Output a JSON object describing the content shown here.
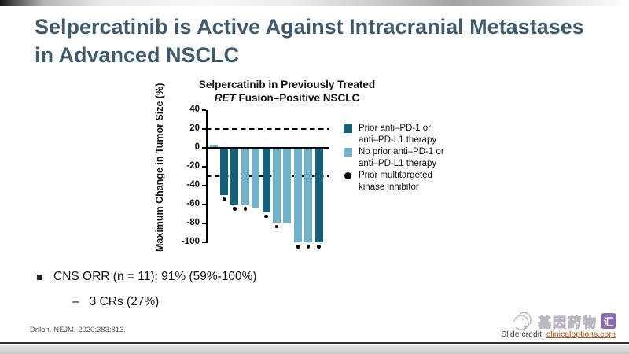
{
  "slide": {
    "title_line1": "Selpercatinib is Active Against Intracranial Metastases",
    "title_line2": "in Advanced NSCLC",
    "title_color": "#3e5a6b"
  },
  "chart": {
    "title_line1": "Selpercatinib in Previously Treated",
    "title_line2_italic": "RET",
    "title_line2_rest": " Fusion–Positive NSCLC",
    "ylabel": "Maximum Change in Tumor Size (%)"
  },
  "chart_data": {
    "type": "bar",
    "title": "Selpercatinib in Previously Treated RET Fusion–Positive NSCLC",
    "ylabel": "Maximum Change in Tumor Size (%)",
    "ylim": [
      -100,
      40
    ],
    "yticks": [
      40,
      20,
      0,
      -20,
      -40,
      -60,
      -80,
      -100
    ],
    "reference_lines_dashed": [
      20,
      -30
    ],
    "grid": false,
    "legend_position": "right",
    "series": [
      {
        "key": "prior",
        "name": "Prior anti–PD-1 or anti–PD-L1 therapy",
        "color": "#15607a"
      },
      {
        "key": "no_prior",
        "name": "No prior anti–PD-1 or anti–PD-L1 therapy",
        "color": "#72b2c8"
      }
    ],
    "marker_legend": "Prior multitargeted kinase inhibitor",
    "marker_color": "#000000",
    "points": [
      {
        "value": 3,
        "series": "no_prior",
        "prior_tki": false
      },
      {
        "value": -50,
        "series": "prior",
        "prior_tki": true
      },
      {
        "value": -60,
        "series": "prior",
        "prior_tki": true
      },
      {
        "value": -60,
        "series": "no_prior",
        "prior_tki": true
      },
      {
        "value": -63,
        "series": "no_prior",
        "prior_tki": false
      },
      {
        "value": -68,
        "series": "prior",
        "prior_tki": true
      },
      {
        "value": -79,
        "series": "no_prior",
        "prior_tki": true
      },
      {
        "value": -80,
        "series": "no_prior",
        "prior_tki": false
      },
      {
        "value": -100,
        "series": "no_prior",
        "prior_tki": true
      },
      {
        "value": -100,
        "series": "no_prior",
        "prior_tki": true
      },
      {
        "value": -100,
        "series": "prior",
        "prior_tki": true
      }
    ]
  },
  "legend": {
    "items": [
      {
        "swatch": "square",
        "color": "#15607a",
        "line1": "Prior anti–PD-1 or",
        "line2": "anti–PD-L1 therapy"
      },
      {
        "swatch": "square",
        "color": "#72b2c8",
        "line1": "No prior anti–PD-1 or",
        "line2": "anti–PD-L1 therapy"
      },
      {
        "swatch": "dot",
        "color": "#000000",
        "line1": "Prior multitargeted",
        "line2": "kinase inhibitor"
      }
    ]
  },
  "bullets": {
    "main": "CNS ORR (n = 11): 91% (59%-100%)",
    "sub_dash": "–",
    "sub": "3 CRs (27%)"
  },
  "footer": {
    "citation": "Drilon. NEJM. 2020;383:813.",
    "credit_label": "Slide credit: ",
    "credit_link": "clinicaloptions.com",
    "link_color": "#b5541e",
    "line_color": "#3f2645"
  },
  "watermark": {
    "icon": "chick-icon",
    "text_outline": "基因药物",
    "badge": "汇",
    "badge_color": "#6b4899"
  }
}
